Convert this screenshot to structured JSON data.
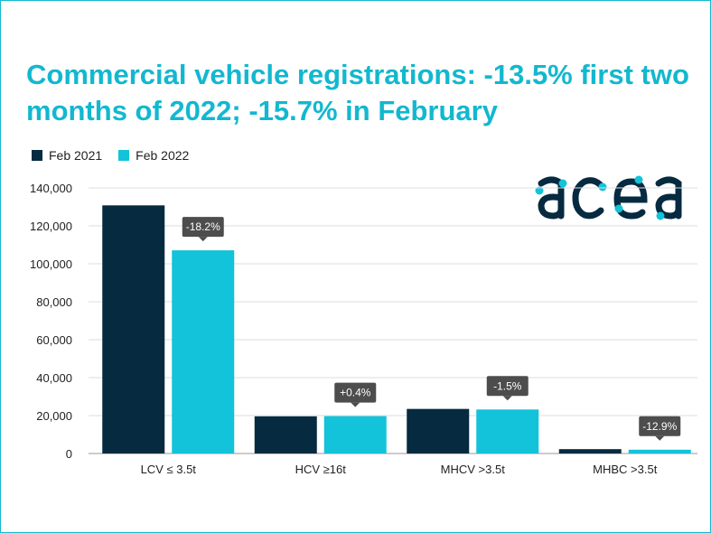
{
  "title": "Commercial vehicle registrations: -13.5% first two months of 2022; -15.7% in February",
  "legend": [
    {
      "label": "Feb 2021",
      "color": "#062a40"
    },
    {
      "label": "Feb 2022",
      "color": "#12c3d9"
    }
  ],
  "logo": {
    "text": "acea",
    "color": "#062a40",
    "dot_color": "#12c3d9"
  },
  "colors": {
    "title": "#12b8cf",
    "grid": "#dddddd",
    "annotation": "#4d4d4d"
  },
  "chart_data": {
    "type": "bar",
    "title": "Commercial vehicle registrations: -13.5% first two months of 2022; -15.7% in February",
    "categories": [
      "LCV ≤ 3.5t",
      "HCV ≥16t",
      "MHCV >3.5t",
      "MHBC >3.5t"
    ],
    "series": [
      {
        "name": "Feb 2021",
        "color": "#062a40",
        "values": [
          130800,
          19600,
          23500,
          2300
        ]
      },
      {
        "name": "Feb 2022",
        "color": "#12c3d9",
        "values": [
          107100,
          19700,
          23200,
          2000
        ]
      }
    ],
    "annotations": [
      "-18.2%",
      "+0.4%",
      "-1.5%",
      "-12.9%"
    ],
    "yticks": [
      "0",
      "20,000",
      "40,000",
      "60,000",
      "80,000",
      "100,000",
      "120,000",
      "140,000"
    ],
    "ylim": [
      0,
      140000
    ],
    "grid": true,
    "legend_position": "top-left"
  }
}
